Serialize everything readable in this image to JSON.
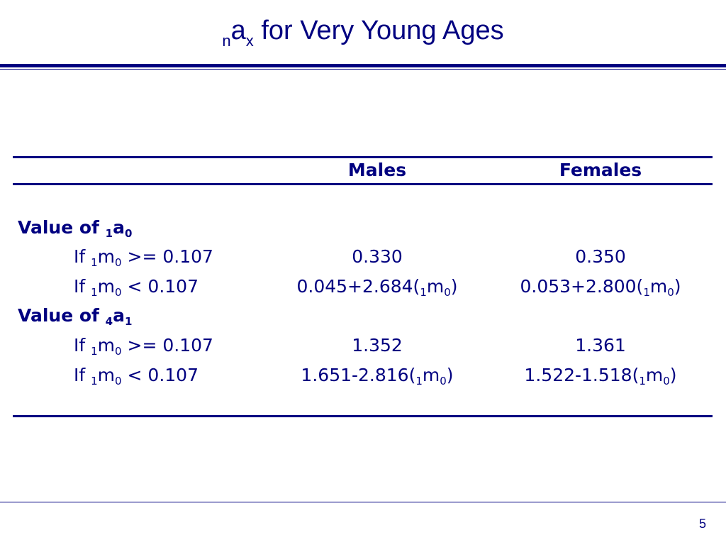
{
  "title": {
    "pre_sub": "n",
    "main": "a",
    "post_sub": "x",
    "rest": " for Very Young Ages"
  },
  "table": {
    "headers": {
      "males": "Males",
      "females": "Females"
    },
    "sections": [
      {
        "label": "Value of ",
        "label_sub": "1",
        "label_var": "a",
        "label_var_sub": "0",
        "rows": [
          {
            "cond_pre": "If ",
            "cond_sub": "1",
            "cond_var": "m",
            "cond_var_sub": "0",
            "cond_rest": " >= 0.107",
            "males": {
              "text": "0.330"
            },
            "females": {
              "text": "0.350"
            }
          },
          {
            "cond_pre": "If ",
            "cond_sub": "1",
            "cond_var": "m",
            "cond_var_sub": "0",
            "cond_rest": " < 0.107",
            "males": {
              "text": "0.045+2.684(",
              "sub": "1",
              "var": "m",
              "var_sub": "0",
              "close": ")"
            },
            "females": {
              "text": "0.053+2.800(",
              "sub": "1",
              "var": "m",
              "var_sub": "0",
              "close": ")"
            }
          }
        ]
      },
      {
        "label": "Value of ",
        "label_sub": "4",
        "label_var": "a",
        "label_var_sub": "1",
        "rows": [
          {
            "cond_pre": "If ",
            "cond_sub": "1",
            "cond_var": "m",
            "cond_var_sub": "0",
            "cond_rest": " >= 0.107",
            "males": {
              "text": "1.352"
            },
            "females": {
              "text": "1.361"
            }
          },
          {
            "cond_pre": "If ",
            "cond_sub": "1",
            "cond_var": "m",
            "cond_var_sub": "0",
            "cond_rest": " < 0.107",
            "males": {
              "text": "1.651-2.816(",
              "sub": "1",
              "var": "m",
              "var_sub": "0",
              "close": ")"
            },
            "females": {
              "text": "1.522-1.518(",
              "sub": "1",
              "var": "m",
              "var_sub": "0",
              "close": ")"
            }
          }
        ]
      }
    ]
  },
  "page_number": "5"
}
